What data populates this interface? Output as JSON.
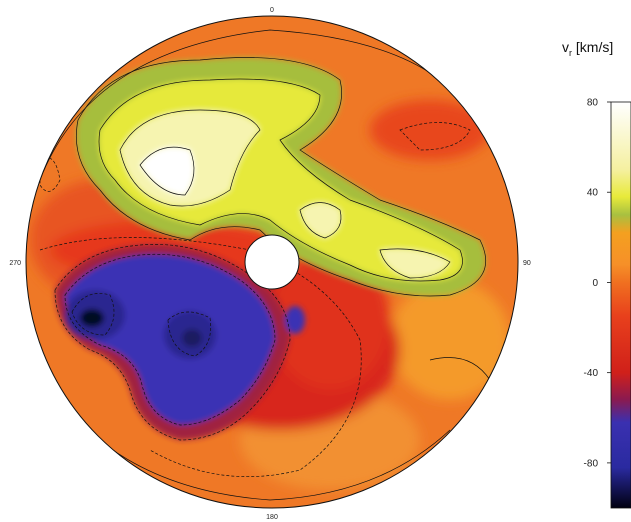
{
  "chart_data": {
    "type": "heatmap",
    "projection": "polar-disk",
    "title": "",
    "angle_labels": [
      "0",
      "90",
      "180",
      "270"
    ],
    "angle_label_degrees": [
      0,
      90,
      180,
      270
    ],
    "angle_direction": "clockwise-from-top",
    "has_central_hole": true,
    "colorbar": {
      "title_main": "v",
      "title_sub": "r",
      "title_unit": " [km/s]",
      "range": [
        -100,
        80
      ],
      "ticks": [
        80,
        40,
        0,
        -40,
        -80
      ],
      "colormap": [
        {
          "value": 80,
          "color": "#ffffff"
        },
        {
          "value": 50,
          "color": "#f5f0a0"
        },
        {
          "value": 38,
          "color": "#e8ea3a"
        },
        {
          "value": 30,
          "color": "#a8c040"
        },
        {
          "value": 22,
          "color": "#f4a020"
        },
        {
          "value": 8,
          "color": "#f69028"
        },
        {
          "value": 0,
          "color": "#f07020"
        },
        {
          "value": -15,
          "color": "#e8401c"
        },
        {
          "value": -40,
          "color": "#d0201a"
        },
        {
          "value": -52,
          "color": "#8a1a50"
        },
        {
          "value": -62,
          "color": "#3a30b0"
        },
        {
          "value": -82,
          "color": "#2a2aa0"
        },
        {
          "value": -100,
          "color": "#000010"
        }
      ]
    },
    "features": [
      {
        "name": "positive-lobe",
        "sign": "positive",
        "peak_kms": 75,
        "angle_deg_center": 20,
        "region": "north-northwest to east"
      },
      {
        "name": "negative-lobe",
        "sign": "negative",
        "peak_kms": -95,
        "angle_deg_center": 230,
        "region": "southwest"
      }
    ],
    "contours": "solid for positive, dashed for negative",
    "grid": false,
    "legend": "colorbar right"
  }
}
